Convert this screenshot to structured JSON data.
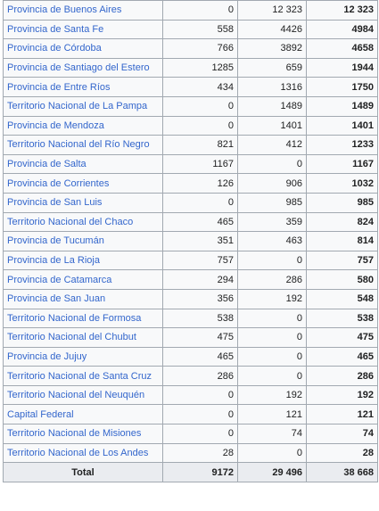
{
  "table": {
    "rows": [
      {
        "name": "Provincia de Buenos Aires",
        "a": "0",
        "b": "12 323",
        "total": "12 323"
      },
      {
        "name": "Provincia de Santa Fe",
        "a": "558",
        "b": "4426",
        "total": "4984"
      },
      {
        "name": "Provincia de Córdoba",
        "a": "766",
        "b": "3892",
        "total": "4658"
      },
      {
        "name": "Provincia de Santiago del Estero",
        "a": "1285",
        "b": "659",
        "total": "1944"
      },
      {
        "name": "Provincia de Entre Ríos",
        "a": "434",
        "b": "1316",
        "total": "1750"
      },
      {
        "name": "Territorio Nacional de La Pampa",
        "a": "0",
        "b": "1489",
        "total": "1489"
      },
      {
        "name": "Provincia de Mendoza",
        "a": "0",
        "b": "1401",
        "total": "1401"
      },
      {
        "name": "Territorio Nacional del Río Negro",
        "a": "821",
        "b": "412",
        "total": "1233"
      },
      {
        "name": "Provincia de Salta",
        "a": "1167",
        "b": "0",
        "total": "1167"
      },
      {
        "name": "Provincia de Corrientes",
        "a": "126",
        "b": "906",
        "total": "1032"
      },
      {
        "name": "Provincia de San Luis",
        "a": "0",
        "b": "985",
        "total": "985"
      },
      {
        "name": "Territorio Nacional del Chaco",
        "a": "465",
        "b": "359",
        "total": "824"
      },
      {
        "name": "Provincia de Tucumán",
        "a": "351",
        "b": "463",
        "total": "814"
      },
      {
        "name": "Provincia de La Rioja",
        "a": "757",
        "b": "0",
        "total": "757"
      },
      {
        "name": "Provincia de Catamarca",
        "a": "294",
        "b": "286",
        "total": "580"
      },
      {
        "name": "Provincia de San Juan",
        "a": "356",
        "b": "192",
        "total": "548"
      },
      {
        "name": "Territorio Nacional de Formosa",
        "a": "538",
        "b": "0",
        "total": "538"
      },
      {
        "name": "Territorio Nacional del Chubut",
        "a": "475",
        "b": "0",
        "total": "475"
      },
      {
        "name": "Provincia de Jujuy",
        "a": "465",
        "b": "0",
        "total": "465"
      },
      {
        "name": "Territorio Nacional de Santa Cruz",
        "a": "286",
        "b": "0",
        "total": "286"
      },
      {
        "name": "Territorio Nacional del Neuquén",
        "a": "0",
        "b": "192",
        "total": "192"
      },
      {
        "name": "Capital Federal",
        "a": "0",
        "b": "121",
        "total": "121"
      },
      {
        "name": "Territorio Nacional de Misiones",
        "a": "0",
        "b": "74",
        "total": "74"
      },
      {
        "name": "Territorio Nacional de Los Andes",
        "a": "28",
        "b": "0",
        "total": "28"
      }
    ],
    "footer": {
      "label": "Total",
      "a": "9172",
      "b": "29 496",
      "total": "38 668"
    }
  },
  "colors": {
    "link": "#3366cc",
    "border": "#a2a9b1",
    "cell_bg": "#f8f9fa",
    "header_bg": "#eaecf0"
  }
}
